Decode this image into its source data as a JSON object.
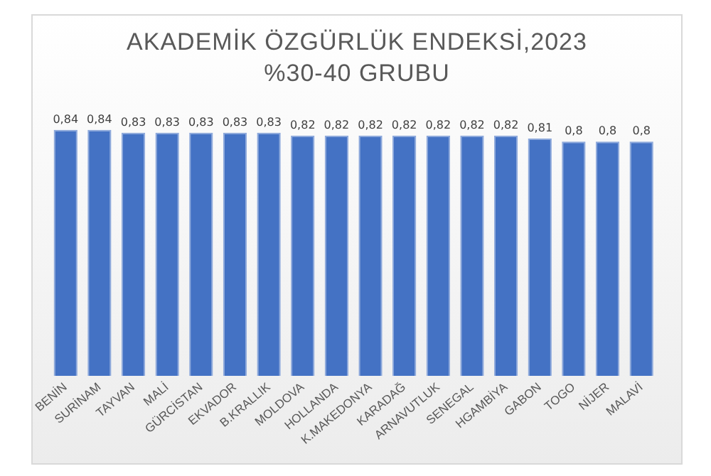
{
  "chart_data": {
    "type": "bar",
    "title": "AKADEMİK ÖZGÜRLÜK ENDEKSİ,2023",
    "subtitle": "%30-40 GRUBU",
    "categories": [
      "BENİN",
      "SURİNAM",
      "TAYVAN",
      "MALİ",
      "GÜRCİSTAN",
      "EKVADOR",
      "B.KRALLIK",
      "MOLDOVA",
      "HOLLANDA",
      "K.MAKEDONYA",
      "KARADAĞ",
      "ARNAVUTLUK",
      "SENEGAL",
      "HGAMBİYA",
      "GABON",
      "TOGO",
      "NİJER",
      "MALAVİ"
    ],
    "values": [
      0.84,
      0.84,
      0.83,
      0.83,
      0.83,
      0.83,
      0.83,
      0.82,
      0.82,
      0.82,
      0.82,
      0.82,
      0.82,
      0.82,
      0.81,
      0.8,
      0.8,
      0.8
    ],
    "value_labels": [
      "0,84",
      "0,84",
      "0,83",
      "0,83",
      "0,83",
      "0,83",
      "0,83",
      "0,82",
      "0,82",
      "0,82",
      "0,82",
      "0,82",
      "0,82",
      "0,82",
      "0,81",
      "0,8",
      "0,8",
      "0,8"
    ],
    "color": "#4472c4",
    "grid": false,
    "legend": false
  }
}
